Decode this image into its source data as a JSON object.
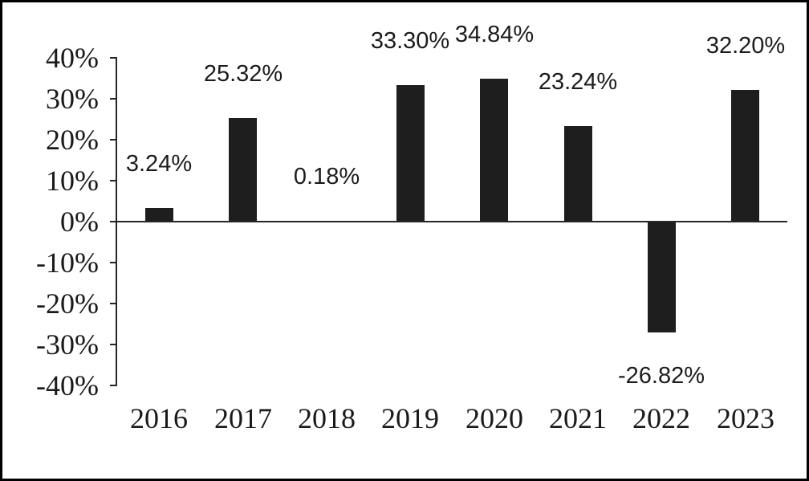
{
  "chart_data": {
    "type": "bar",
    "title": "",
    "categories": [
      "2016",
      "2017",
      "2018",
      "2019",
      "2020",
      "2021",
      "2022",
      "2023"
    ],
    "values": [
      3.24,
      25.32,
      0.18,
      33.3,
      34.84,
      23.24,
      -26.82,
      32.2
    ],
    "labels": [
      "3.24%",
      "25.32%",
      "0.18%",
      "33.30%",
      "34.84%",
      "23.24%",
      "-26.82%",
      "32.20%"
    ],
    "yticks": [
      {
        "value": 40,
        "label": "40%"
      },
      {
        "value": 30,
        "label": "30%"
      },
      {
        "value": 20,
        "label": "20%"
      },
      {
        "value": 10,
        "label": "10%"
      },
      {
        "value": 0,
        "label": "0%"
      },
      {
        "value": -10,
        "label": "-10%"
      },
      {
        "value": -20,
        "label": "-20%"
      },
      {
        "value": -30,
        "label": "-30%"
      },
      {
        "value": -40,
        "label": "-40%"
      }
    ],
    "xlabel": "",
    "ylabel": "",
    "ylim": [
      -40,
      40
    ],
    "grid": false,
    "legend": null,
    "bar_color": "#1e1e1e",
    "axis_color": "#262626",
    "background_color": "#ffffff",
    "border_color": "#000000"
  }
}
